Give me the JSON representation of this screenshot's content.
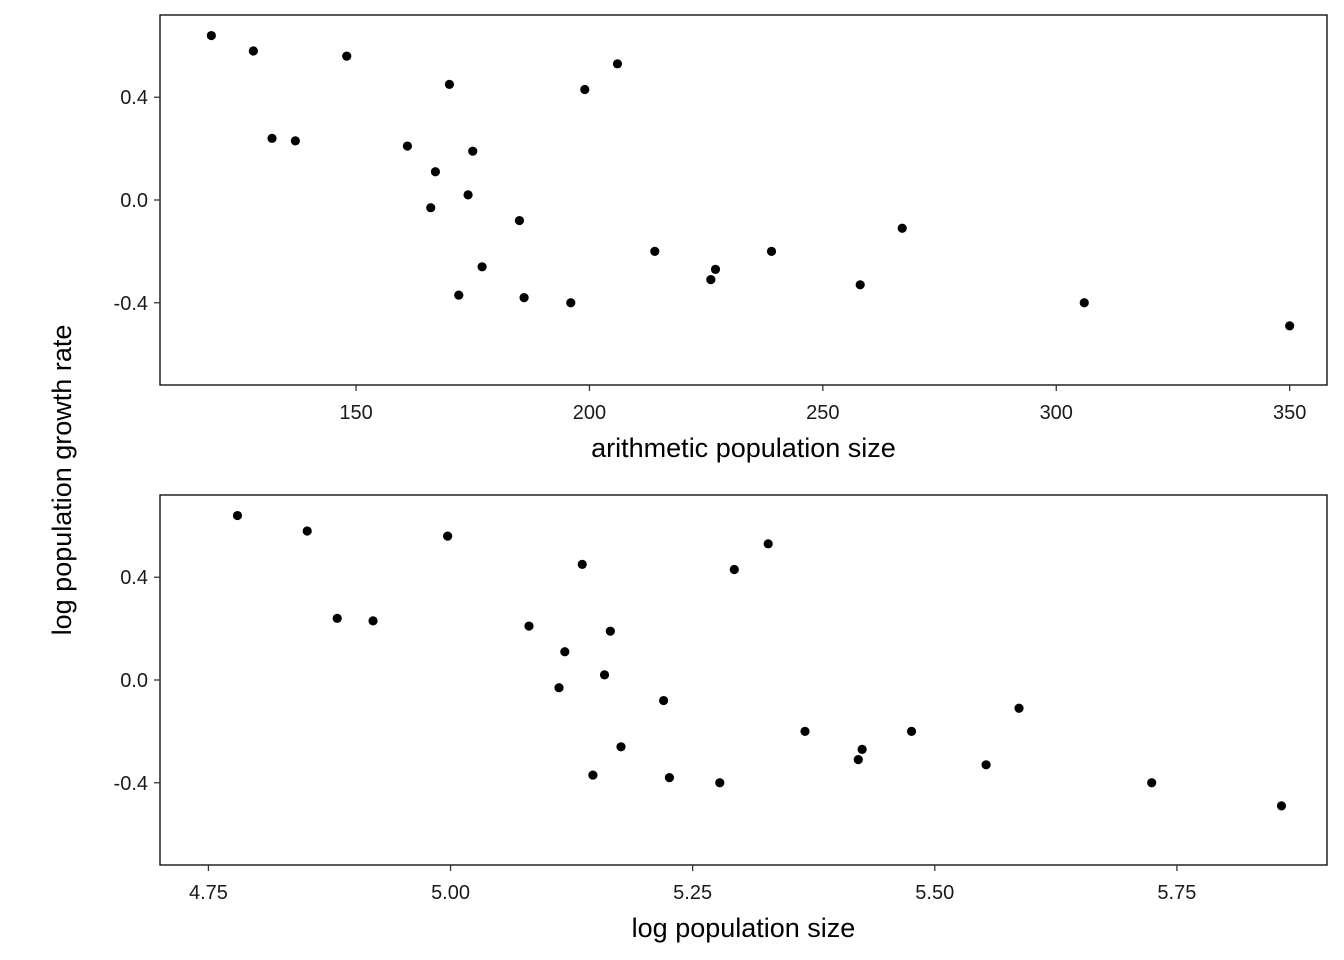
{
  "figure": {
    "shared_ylabel": "log population growth rate"
  },
  "chart_data": [
    {
      "type": "scatter",
      "title": "",
      "xlabel": "arithmetic population size",
      "ylabel": "log population growth rate",
      "xlim": [
        108,
        358
      ],
      "ylim": [
        -0.72,
        0.72
      ],
      "xticks": [
        150,
        200,
        250,
        300,
        350
      ],
      "xtick_labels": [
        "150",
        "200",
        "250",
        "300",
        "350"
      ],
      "yticks": [
        0.4,
        0.0,
        -0.4
      ],
      "ytick_labels": [
        "0.4",
        "0.0",
        "-0.4"
      ],
      "grid": false,
      "legend": "none",
      "point_color": "#000000",
      "points": [
        {
          "x": 119,
          "y": 0.64
        },
        {
          "x": 128,
          "y": 0.58
        },
        {
          "x": 132,
          "y": 0.24
        },
        {
          "x": 137,
          "y": 0.23
        },
        {
          "x": 148,
          "y": 0.56
        },
        {
          "x": 161,
          "y": 0.21
        },
        {
          "x": 166,
          "y": -0.03
        },
        {
          "x": 167,
          "y": 0.11
        },
        {
          "x": 170,
          "y": 0.45
        },
        {
          "x": 172,
          "y": -0.37
        },
        {
          "x": 174,
          "y": 0.02
        },
        {
          "x": 175,
          "y": 0.19
        },
        {
          "x": 177,
          "y": -0.26
        },
        {
          "x": 185,
          "y": -0.08
        },
        {
          "x": 186,
          "y": -0.38
        },
        {
          "x": 196,
          "y": -0.4
        },
        {
          "x": 199,
          "y": 0.43
        },
        {
          "x": 206,
          "y": 0.53
        },
        {
          "x": 214,
          "y": -0.2
        },
        {
          "x": 226,
          "y": -0.31
        },
        {
          "x": 227,
          "y": -0.27
        },
        {
          "x": 239,
          "y": -0.2
        },
        {
          "x": 258,
          "y": -0.33
        },
        {
          "x": 267,
          "y": -0.11
        },
        {
          "x": 306,
          "y": -0.4
        },
        {
          "x": 350,
          "y": -0.49
        }
      ]
    },
    {
      "type": "scatter",
      "title": "",
      "xlabel": "log population size",
      "ylabel": "log population growth rate",
      "xlim": [
        4.7,
        5.905
      ],
      "ylim": [
        -0.72,
        0.72
      ],
      "xticks": [
        4.75,
        5.0,
        5.25,
        5.5,
        5.75
      ],
      "xtick_labels": [
        "4.75",
        "5.00",
        "5.25",
        "5.50",
        "5.75"
      ],
      "yticks": [
        0.4,
        0.0,
        -0.4
      ],
      "ytick_labels": [
        "0.4",
        "0.0",
        "-0.4"
      ],
      "grid": false,
      "legend": "none",
      "point_color": "#000000",
      "points": [
        {
          "x": 4.78,
          "y": 0.64
        },
        {
          "x": 4.852,
          "y": 0.58
        },
        {
          "x": 4.883,
          "y": 0.24
        },
        {
          "x": 4.92,
          "y": 0.23
        },
        {
          "x": 4.997,
          "y": 0.56
        },
        {
          "x": 5.081,
          "y": 0.21
        },
        {
          "x": 5.112,
          "y": -0.03
        },
        {
          "x": 5.118,
          "y": 0.11
        },
        {
          "x": 5.136,
          "y": 0.45
        },
        {
          "x": 5.147,
          "y": -0.37
        },
        {
          "x": 5.159,
          "y": 0.02
        },
        {
          "x": 5.165,
          "y": 0.19
        },
        {
          "x": 5.176,
          "y": -0.26
        },
        {
          "x": 5.22,
          "y": -0.08
        },
        {
          "x": 5.226,
          "y": -0.38
        },
        {
          "x": 5.278,
          "y": -0.4
        },
        {
          "x": 5.293,
          "y": 0.43
        },
        {
          "x": 5.328,
          "y": 0.53
        },
        {
          "x": 5.366,
          "y": -0.2
        },
        {
          "x": 5.421,
          "y": -0.31
        },
        {
          "x": 5.425,
          "y": -0.27
        },
        {
          "x": 5.476,
          "y": -0.2
        },
        {
          "x": 5.553,
          "y": -0.33
        },
        {
          "x": 5.587,
          "y": -0.11
        },
        {
          "x": 5.724,
          "y": -0.4
        },
        {
          "x": 5.858,
          "y": -0.49
        }
      ]
    }
  ]
}
